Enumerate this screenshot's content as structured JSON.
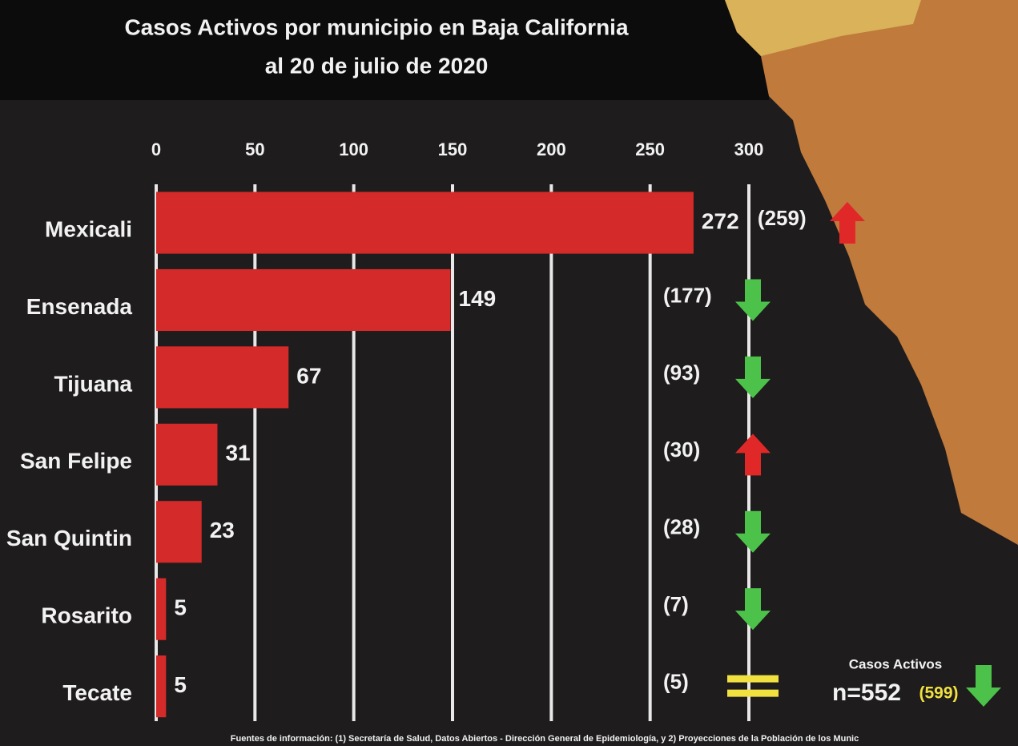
{
  "chart_data": {
    "type": "bar",
    "orientation": "horizontal",
    "title_lines": [
      "Casos Activos por municipio en Baja California",
      "al 20 de julio de 2020"
    ],
    "categories": [
      "Mexicali",
      "Ensenada",
      "Tijuana",
      "San Felipe",
      "San Quintin",
      "Rosarito",
      "Tecate"
    ],
    "values": [
      272,
      149,
      67,
      31,
      23,
      5,
      5
    ],
    "color": "#d42a2a",
    "previous": {
      "values": [
        259,
        177,
        93,
        30,
        28,
        7,
        5
      ],
      "value_labels": [
        "(259)",
        "(177)",
        "(93)",
        "(30)",
        "(28)",
        "(7)",
        "(5)"
      ]
    },
    "trend": [
      "up",
      "down",
      "down",
      "up",
      "down",
      "down",
      "equal"
    ],
    "xlim": [
      0,
      300
    ],
    "xticks": [
      0,
      50,
      100,
      150,
      200,
      250,
      300
    ],
    "grid": true,
    "total": {
      "title": "Casos Activos",
      "label": "n=552",
      "value": 552,
      "previous": 599,
      "previous_label": "(599)",
      "trend": "down"
    },
    "source": "Fuentes de información: (1) Secretaría de Salud, Datos Abiertos - Dirección General de Epidemiología, y 2) Proyecciones de la Población de los Munic"
  }
}
